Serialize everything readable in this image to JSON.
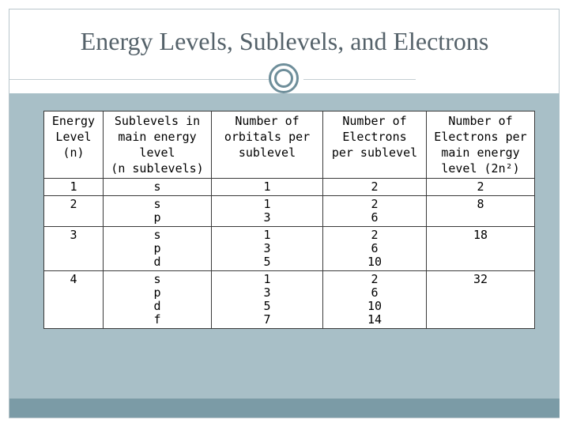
{
  "slide": {
    "title": "Energy Levels, Sublevels, and Electrons"
  },
  "table": {
    "headers": [
      [
        "Energy",
        "Level",
        "(n)"
      ],
      [
        "Sublevels in",
        "main energy",
        "level",
        "(n sublevels)"
      ],
      [
        "Number of",
        "orbitals per",
        "sublevel"
      ],
      [
        "Number of",
        "Electrons",
        "per sublevel"
      ],
      [
        "Number of",
        "Electrons per",
        "main energy",
        "level (2n²)"
      ]
    ],
    "rows": [
      {
        "level": "1",
        "sublevels": [
          "s"
        ],
        "orbitals": [
          "1"
        ],
        "electrons": [
          "2"
        ],
        "total": "2"
      },
      {
        "level": "2",
        "sublevels": [
          "s",
          "p"
        ],
        "orbitals": [
          "1",
          "3"
        ],
        "electrons": [
          "2",
          "6"
        ],
        "total": "8"
      },
      {
        "level": "3",
        "sublevels": [
          "s",
          "p",
          "d"
        ],
        "orbitals": [
          "1",
          "3",
          "5"
        ],
        "electrons": [
          "2",
          "6",
          "10"
        ],
        "total": "18"
      },
      {
        "level": "4",
        "sublevels": [
          "s",
          "p",
          "d",
          "f"
        ],
        "orbitals": [
          "1",
          "3",
          "5",
          "7"
        ],
        "electrons": [
          "2",
          "6",
          "10",
          "14"
        ],
        "total": "32"
      }
    ]
  }
}
